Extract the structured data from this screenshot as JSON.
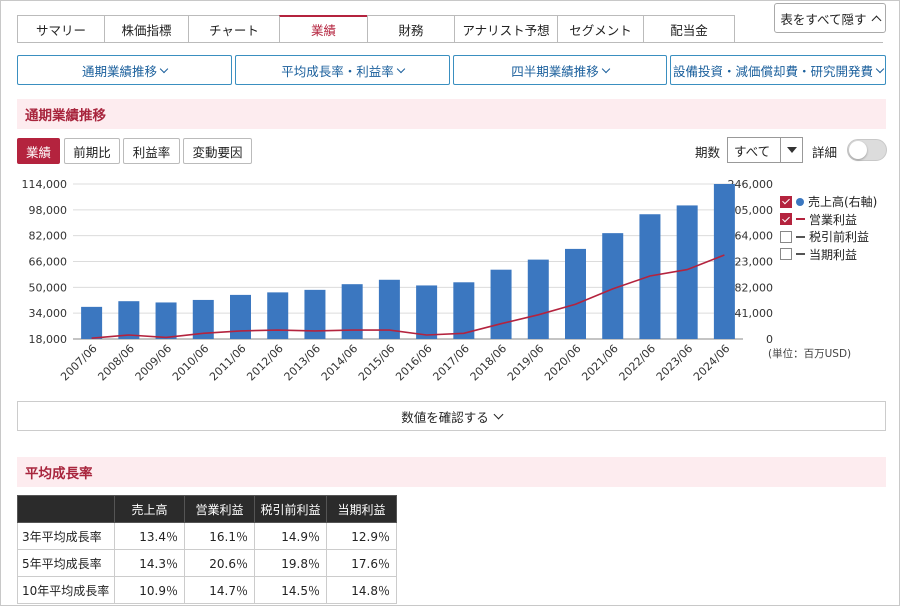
{
  "tabs": [
    {
      "label": "サマリー",
      "active": false
    },
    {
      "label": "株価指標",
      "active": false
    },
    {
      "label": "チャート",
      "active": false
    },
    {
      "label": "業績",
      "active": true
    },
    {
      "label": "財務",
      "active": false
    },
    {
      "label": "アナリスト予想",
      "active": false
    },
    {
      "label": "セグメント",
      "active": false
    },
    {
      "label": "配当金",
      "active": false
    }
  ],
  "hide_all_label": "表をすべて隠す",
  "section_buttons": [
    "通期業績推移",
    "平均成長率・利益率",
    "四半期業績推移",
    "設備投資・減価償却費・研究開発費"
  ],
  "section1_title": "通期業績推移",
  "view_buttons": [
    {
      "label": "業績",
      "active": true
    },
    {
      "label": "前期比",
      "active": false
    },
    {
      "label": "利益率",
      "active": false
    },
    {
      "label": "変動要因",
      "active": false
    }
  ],
  "period": {
    "label": "期数",
    "value": "すべて"
  },
  "detail_label": "詳細",
  "detail_on": false,
  "legend": [
    {
      "label": "売上高(右軸)",
      "checked": true,
      "marker": "dot",
      "color": "#3b77c0"
    },
    {
      "label": "営業利益",
      "checked": true,
      "marker": "line",
      "color": "#b4233e"
    },
    {
      "label": "税引前利益",
      "checked": false,
      "marker": "line",
      "color": "#555555"
    },
    {
      "label": "当期利益",
      "checked": false,
      "marker": "line",
      "color": "#555555"
    }
  ],
  "unit_label": "(単位：百万USD)",
  "confirm_label": "数値を確認する",
  "section2_title": "平均成長率",
  "growth_table": {
    "headers": [
      "",
      "売上高",
      "営業利益",
      "税引前利益",
      "当期利益"
    ],
    "rows": [
      [
        "3年平均成長率",
        "13.4％",
        "16.1％",
        "14.9％",
        "12.9％"
      ],
      [
        "5年平均成長率",
        "14.3％",
        "20.6％",
        "19.8％",
        "17.6％"
      ],
      [
        "10年平均成長率",
        "10.9％",
        "14.7％",
        "14.5％",
        "14.8％"
      ]
    ]
  },
  "chart_data": {
    "type": "bar+line",
    "categories": [
      "2007/06",
      "2008/06",
      "2009/06",
      "2010/06",
      "2011/06",
      "2012/06",
      "2013/06",
      "2014/06",
      "2015/06",
      "2016/06",
      "2017/06",
      "2018/06",
      "2019/06",
      "2020/06",
      "2021/06",
      "2022/06",
      "2023/06",
      "2024/06"
    ],
    "series": [
      {
        "name": "売上高(右軸)",
        "type": "bar",
        "axis": "right",
        "color": "#3b77c0",
        "values": [
          51000,
          60000,
          58000,
          62000,
          70000,
          74000,
          78000,
          87000,
          94000,
          85000,
          90000,
          110000,
          126000,
          143000,
          168000,
          198000,
          212000,
          246000
        ]
      },
      {
        "name": "営業利益",
        "type": "line",
        "axis": "left",
        "color": "#b4233e",
        "values": [
          18500,
          20500,
          19000,
          21500,
          23000,
          23500,
          23000,
          23500,
          23500,
          20500,
          21500,
          27500,
          33000,
          39500,
          49000,
          57000,
          61000,
          70000
        ]
      }
    ],
    "left_axis": {
      "min": 18000,
      "max": 114000,
      "ticks": [
        "114,000",
        "98,000",
        "82,000",
        "66,000",
        "50,000",
        "34,000",
        "18,000"
      ]
    },
    "right_axis": {
      "min": 0,
      "max": 246000,
      "ticks": [
        "246,000",
        "205,000",
        "164,000",
        "123,000",
        "82,000",
        "41,000",
        "0"
      ]
    },
    "grid": true,
    "legend_position": "right"
  }
}
